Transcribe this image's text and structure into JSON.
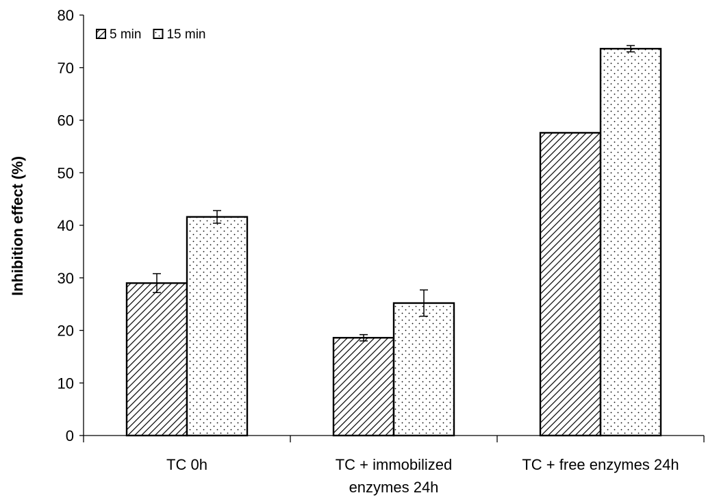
{
  "chart_data": {
    "type": "bar",
    "title": "",
    "xlabel": "",
    "ylabel": "Inhibition effect (%)",
    "ylim": [
      0,
      80
    ],
    "yticks": [
      0,
      10,
      20,
      30,
      40,
      50,
      60,
      70,
      80
    ],
    "categories": [
      [
        "TC 0h"
      ],
      [
        "TC + immobilized",
        "enzymes 24h"
      ],
      [
        "TC + free enzymes 24h"
      ]
    ],
    "series": [
      {
        "name": "5 min",
        "pattern": "diagonal-hatch",
        "values": [
          29.0,
          18.6,
          57.6
        ],
        "errors": [
          1.8,
          0.6,
          0.0
        ]
      },
      {
        "name": "15 min",
        "pattern": "dots",
        "values": [
          41.6,
          25.2,
          73.6
        ],
        "errors": [
          1.2,
          2.5,
          0.6
        ]
      }
    ],
    "grid": false,
    "legend_position": "top-left",
    "colors": {
      "bar_fill": "#ffffff",
      "bar_stroke": "#000000",
      "pattern_ink": "#000000"
    }
  }
}
